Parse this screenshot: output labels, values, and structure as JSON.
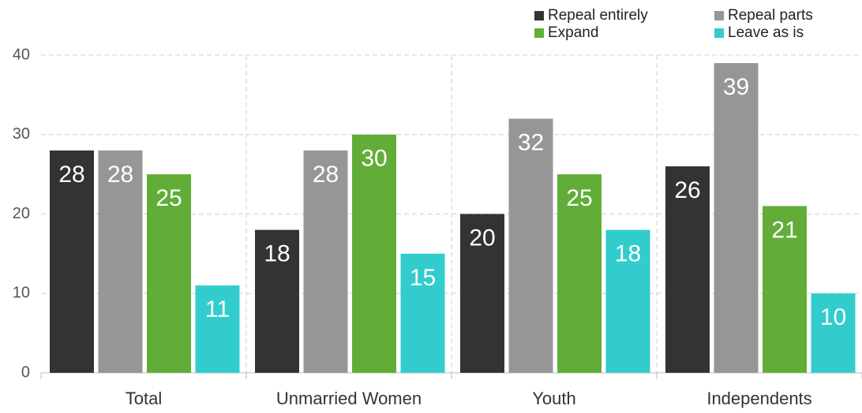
{
  "chart_data": {
    "type": "bar",
    "categories": [
      "Total",
      "Unmarried Women",
      "Youth",
      "Independents"
    ],
    "series": [
      {
        "name": "Repeal entirely",
        "color": "#333333",
        "values": [
          28,
          18,
          20,
          26
        ]
      },
      {
        "name": "Repeal parts",
        "color": "#969696",
        "values": [
          28,
          28,
          32,
          39
        ]
      },
      {
        "name": "Expand",
        "color": "#62ad38",
        "values": [
          25,
          30,
          25,
          21
        ]
      },
      {
        "name": "Leave as is",
        "color": "#33cccc",
        "values": [
          11,
          15,
          18,
          10
        ]
      }
    ],
    "ylim": [
      0,
      40
    ],
    "yticks": [
      0,
      10,
      20,
      30,
      40
    ],
    "grid": true,
    "legend": "top-right"
  }
}
